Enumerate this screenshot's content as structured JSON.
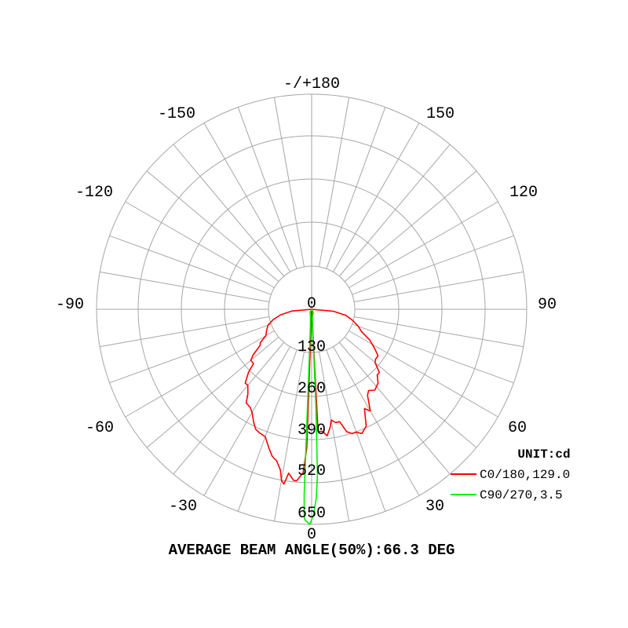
{
  "chart_data": {
    "type": "polar",
    "unit_label": "UNIT:cd",
    "footer": "AVERAGE BEAM ANGLE(50%):66.3 DEG",
    "radial_ticks": [
      "0",
      "130",
      "260",
      "390",
      "520",
      "650"
    ],
    "radial_max": 650,
    "angle_labels": [
      {
        "deg": 180,
        "text": "-/+180"
      },
      {
        "deg": 150,
        "text": "150"
      },
      {
        "deg": -150,
        "text": "-150"
      },
      {
        "deg": 120,
        "text": "120"
      },
      {
        "deg": -120,
        "text": "-120"
      },
      {
        "deg": 90,
        "text": "90"
      },
      {
        "deg": -90,
        "text": "-90"
      },
      {
        "deg": 60,
        "text": "60"
      },
      {
        "deg": -60,
        "text": "-60"
      },
      {
        "deg": 30,
        "text": "30"
      },
      {
        "deg": -30,
        "text": "-30"
      },
      {
        "deg": 0,
        "text": "0"
      }
    ],
    "grid": true,
    "legend_position": "bottom-right",
    "series": [
      {
        "name": "C0/180,129.0",
        "color": "#ff0000",
        "points": [
          [
            -90,
            0
          ],
          [
            -85,
            60
          ],
          [
            -80,
            95
          ],
          [
            -75,
            120
          ],
          [
            -70,
            140
          ],
          [
            -65,
            150
          ],
          [
            -60,
            160
          ],
          [
            -57,
            185
          ],
          [
            -55,
            190
          ],
          [
            -52,
            225
          ],
          [
            -50,
            240
          ],
          [
            -47,
            240
          ],
          [
            -45,
            270
          ],
          [
            -42,
            300
          ],
          [
            -40,
            300
          ],
          [
            -37,
            320
          ],
          [
            -35,
            345
          ],
          [
            -32,
            350
          ],
          [
            -30,
            360
          ],
          [
            -27,
            385
          ],
          [
            -25,
            400
          ],
          [
            -23,
            405
          ],
          [
            -20,
            410
          ],
          [
            -17,
            440
          ],
          [
            -15,
            460
          ],
          [
            -13,
            470
          ],
          [
            -11,
            495
          ],
          [
            -10,
            525
          ],
          [
            -9,
            535
          ],
          [
            -8,
            500
          ],
          [
            -6,
            520
          ],
          [
            -5,
            520
          ],
          [
            -3,
            495
          ],
          [
            -2,
            420
          ],
          [
            0,
            0
          ],
          [
            3,
            370
          ],
          [
            5,
            370
          ],
          [
            7,
            385
          ],
          [
            9,
            360
          ],
          [
            10,
            340
          ],
          [
            12,
            350
          ],
          [
            14,
            350
          ],
          [
            16,
            385
          ],
          [
            18,
            395
          ],
          [
            20,
            395
          ],
          [
            22,
            405
          ],
          [
            25,
            390
          ],
          [
            28,
            340
          ],
          [
            30,
            355
          ],
          [
            33,
            310
          ],
          [
            35,
            300
          ],
          [
            38,
            310
          ],
          [
            42,
            300
          ],
          [
            45,
            280
          ],
          [
            47,
            280
          ],
          [
            50,
            250
          ],
          [
            52,
            245
          ],
          [
            55,
            245
          ],
          [
            58,
            225
          ],
          [
            62,
            200
          ],
          [
            66,
            165
          ],
          [
            70,
            150
          ],
          [
            75,
            128
          ],
          [
            80,
            105
          ],
          [
            85,
            65
          ],
          [
            90,
            0
          ]
        ]
      },
      {
        "name": "C90/270,3.5",
        "color": "#00ee00",
        "points": [
          [
            -90,
            0
          ],
          [
            -30,
            10
          ],
          [
            -10,
            20
          ],
          [
            -4,
            55
          ],
          [
            -3,
            110
          ],
          [
            -2.5,
            250
          ],
          [
            -2.3,
            560
          ],
          [
            -2.1,
            615
          ],
          [
            -1.9,
            635
          ],
          [
            -1.5,
            640
          ],
          [
            -0.5,
            650
          ],
          [
            0.6,
            620
          ],
          [
            1.4,
            570
          ],
          [
            2,
            500
          ],
          [
            2.5,
            300
          ],
          [
            3,
            80
          ],
          [
            5,
            25
          ],
          [
            30,
            10
          ],
          [
            90,
            0
          ]
        ]
      }
    ]
  }
}
